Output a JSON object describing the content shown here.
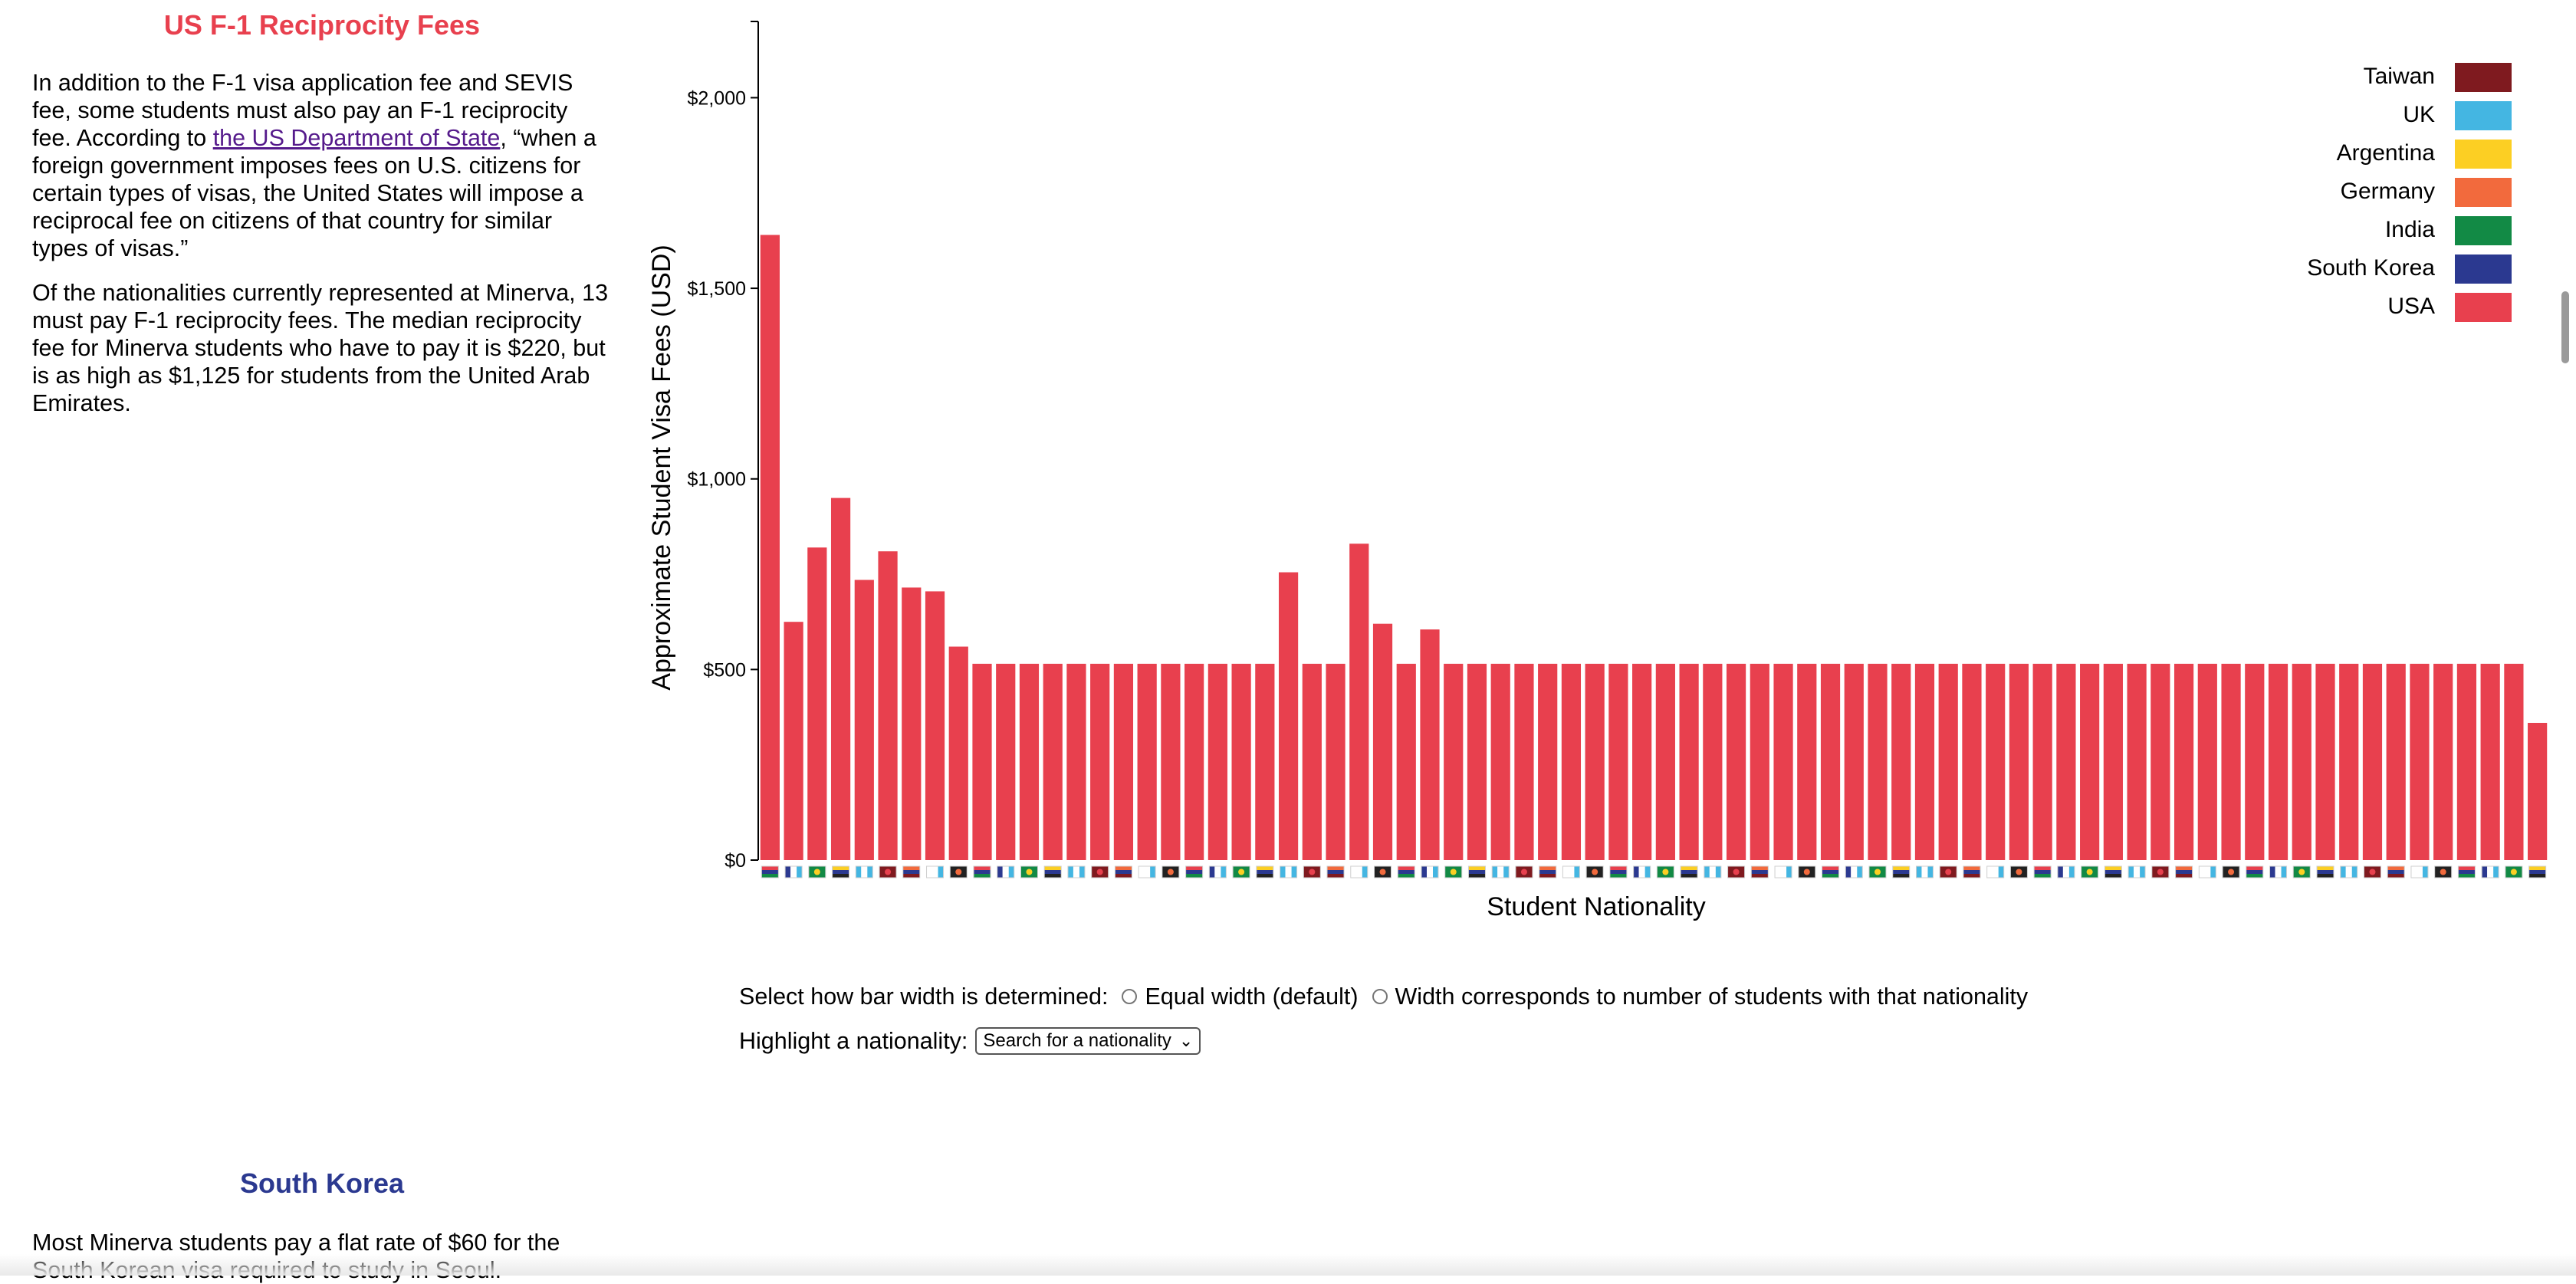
{
  "left": {
    "section_title": "US F-1 Reciprocity Fees",
    "p1_before": "In addition to the F-1 visa application fee and SEVIS fee, some students must also pay an F-1 reciprocity fee. According to ",
    "p1_link": "the US Department of State",
    "p1_after": ", “when a foreign government imposes fees on U.S. citizens for certain types of visas, the United States will impose a reciprocal fee on citizens of that country for similar types of visas.”",
    "p2": "Of the nationalities currently represented at Minerva, 13 must pay F-1 reciprocity fees. The median reciprocity fee for Minerva students who have to pay it is $220, but is as high as $1,125 for students from the United Arab Emirates.",
    "section2_title": "South Korea",
    "p3": "Most Minerva students pay a flat rate of $60 for the South Korean visa required to study in Seoul."
  },
  "controls": {
    "bar_width_label": "Select how bar width is determined:",
    "option_equal": "Equal width (default)",
    "option_students": "Width corresponds to number of students with that nationality",
    "highlight_label": "Highlight a nationality:",
    "select_value": "Search for a nationality"
  },
  "colors": {
    "bar": "#e8404e",
    "title_red": "#e8404e",
    "title_blue": "#2b3990"
  },
  "chart_data": {
    "type": "bar",
    "title": "",
    "xlabel": "Student Nationality",
    "ylabel": "Approximate Student Visa Fees (USD)",
    "ylim": [
      0,
      2200
    ],
    "yticks": [
      {
        "value": 0,
        "label": "$0"
      },
      {
        "value": 500,
        "label": "$500"
      },
      {
        "value": 1000,
        "label": "$1,000"
      },
      {
        "value": 1500,
        "label": "$1,500"
      },
      {
        "value": 2000,
        "label": "$2,000"
      }
    ],
    "x_tick_marks": "country flags",
    "series": [
      {
        "color": "#e8404e",
        "values": [
          1640,
          625,
          820,
          950,
          735,
          810,
          715,
          705,
          560,
          515,
          515,
          515,
          515,
          515,
          515,
          515,
          515,
          515,
          515,
          515,
          515,
          515,
          755,
          515,
          515,
          830,
          620,
          515,
          605,
          515,
          515,
          515,
          515,
          515,
          515,
          515,
          515,
          515,
          515,
          515,
          515,
          515,
          515,
          515,
          515,
          515,
          515,
          515,
          515,
          515,
          515,
          515,
          515,
          515,
          515,
          515,
          515,
          515,
          515,
          515,
          515,
          515,
          515,
          515,
          515,
          515,
          515,
          515,
          515,
          515,
          515,
          515,
          515,
          515,
          515,
          360
        ]
      }
    ],
    "legend": {
      "position": "top-right",
      "entries": [
        {
          "label": "Taiwan",
          "color": "#7f1a1f"
        },
        {
          "label": "UK",
          "color": "#44b6e2"
        },
        {
          "label": "Argentina",
          "color": "#fccf23"
        },
        {
          "label": "Germany",
          "color": "#f26a3d"
        },
        {
          "label": "India",
          "color": "#128a45"
        },
        {
          "label": "South Korea",
          "color": "#2b3990"
        },
        {
          "label": "USA",
          "color": "#e8404e"
        }
      ]
    },
    "flag_palette": [
      "#e8404e",
      "#2b3990",
      "#128a45",
      "#fccf23",
      "#44b6e2",
      "#7f1a1f",
      "#f26a3d",
      "#ffffff",
      "#222222"
    ]
  }
}
